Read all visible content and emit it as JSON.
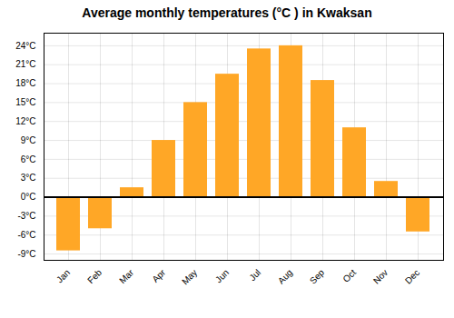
{
  "chart_data": {
    "type": "bar",
    "title": "Average monthly temperatures (°C ) in Kwaksan",
    "categories": [
      "Jan",
      "Feb",
      "Mar",
      "Apr",
      "May",
      "Jun",
      "Jul",
      "Aug",
      "Sep",
      "Oct",
      "Nov",
      "Dec"
    ],
    "values": [
      -8.5,
      -5.0,
      1.5,
      9.0,
      15.0,
      19.5,
      23.5,
      24.0,
      18.5,
      11.0,
      2.5,
      -5.5
    ],
    "color": "#FFA726",
    "ylim": [
      -10,
      26
    ],
    "yticks": [
      {
        "value": -9,
        "label": "-9°C"
      },
      {
        "value": -6,
        "label": "-6°C"
      },
      {
        "value": -3,
        "label": "-3°C"
      },
      {
        "value": 0,
        "label": "0°C"
      },
      {
        "value": 3,
        "label": "3°C"
      },
      {
        "value": 6,
        "label": "6°C"
      },
      {
        "value": 9,
        "label": "9°C"
      },
      {
        "value": 12,
        "label": "12°C"
      },
      {
        "value": 15,
        "label": "15°C"
      },
      {
        "value": 18,
        "label": "18°C"
      },
      {
        "value": 21,
        "label": "21°C"
      },
      {
        "value": 24,
        "label": "24°C"
      }
    ],
    "grid": true
  }
}
